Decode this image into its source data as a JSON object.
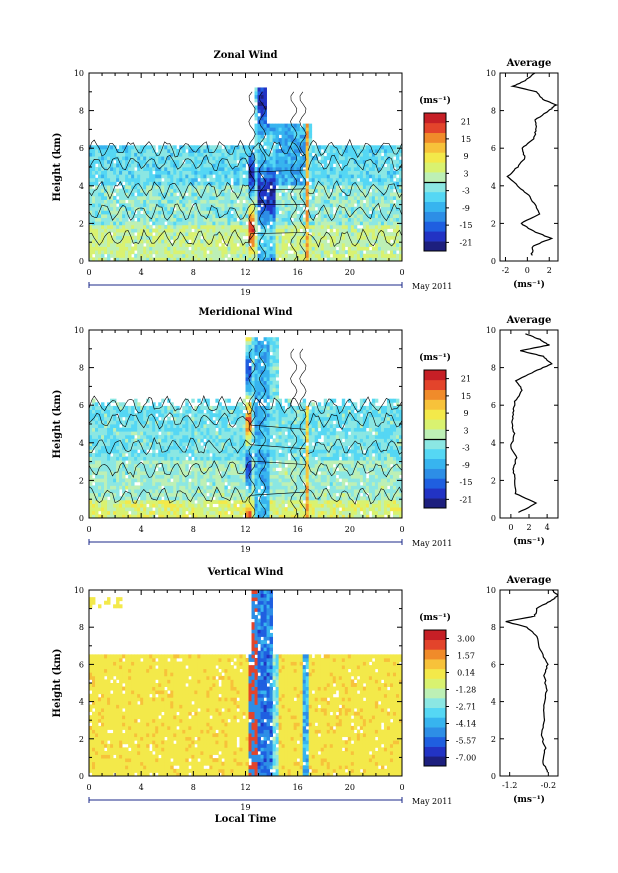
{
  "colors": {
    "colorbar": [
      "#1d1f7e",
      "#2233c4",
      "#1f5fe0",
      "#2d8ee6",
      "#37b4ef",
      "#55d7f4",
      "#8be7e3",
      "#bdf0b5",
      "#d9f270",
      "#f3e94a",
      "#f7c23a",
      "#f08b2a",
      "#e3442b",
      "#c61f26"
    ],
    "contour": "#000000",
    "background": "#ffffff"
  },
  "shared": {
    "xlabel": "Local Time",
    "date_label": "May 2011",
    "day_label": "19",
    "avg_title": "Average",
    "avg_unit": "(ms⁻¹)",
    "cb_unit": "(ms⁻¹)",
    "ylabel": "Height (km)"
  },
  "chart_data": [
    {
      "type": "heatmap",
      "title": "Zonal Wind",
      "ylabel": "Height (km)",
      "xticks": [
        "0",
        "4",
        "8",
        "12",
        "16",
        "20",
        "0"
      ],
      "yticks": [
        "0",
        "2",
        "4",
        "6",
        "8",
        "10"
      ],
      "ylim": [
        0,
        10
      ],
      "colorbar_ticks": [
        "21",
        "15",
        "9",
        "3",
        "-3",
        "-9",
        "-15",
        "-21"
      ],
      "colorbar_range": [
        -24,
        24
      ],
      "contours": true,
      "average": {
        "xticks": [
          "-2",
          "0",
          "2"
        ],
        "xlim": [
          -2.5,
          2.8
        ],
        "height": [
          0.3,
          0.8,
          1.2,
          1.6,
          2.0,
          2.5,
          3.0,
          3.5,
          4.0,
          4.5,
          5.0,
          5.5,
          6.0,
          6.5,
          7.0,
          7.5,
          8.0,
          8.3,
          8.6,
          9.0,
          9.3,
          9.6,
          10.0
        ],
        "value": [
          0.4,
          0.5,
          2.2,
          0.5,
          -0.6,
          1.1,
          0.7,
          0.1,
          -0.9,
          -1.8,
          -0.9,
          -0.2,
          -0.5,
          0.6,
          0.8,
          0.7,
          2.0,
          2.6,
          1.4,
          0.8,
          -1.3,
          -0.2,
          0.7
        ]
      }
    },
    {
      "type": "heatmap",
      "title": "Meridional Wind",
      "ylabel": "Height (km)",
      "xticks": [
        "0",
        "4",
        "8",
        "12",
        "16",
        "20",
        "0"
      ],
      "yticks": [
        "0",
        "2",
        "4",
        "6",
        "8",
        "10"
      ],
      "ylim": [
        0,
        10
      ],
      "colorbar_ticks": [
        "21",
        "15",
        "9",
        "3",
        "-3",
        "-9",
        "-15",
        "-21"
      ],
      "colorbar_range": [
        -24,
        24
      ],
      "contours": true,
      "average": {
        "xticks": [
          "0",
          "2",
          "4"
        ],
        "xlim": [
          -1.2,
          5.2
        ],
        "height": [
          0.3,
          0.8,
          1.3,
          2.0,
          2.6,
          3.2,
          3.8,
          4.4,
          5.0,
          5.6,
          6.2,
          6.8,
          7.3,
          7.8,
          8.2,
          8.6,
          8.9,
          9.2,
          9.5,
          9.8
        ],
        "value": [
          0.9,
          2.8,
          0.5,
          0.4,
          0.3,
          0.6,
          0.0,
          0.4,
          0.1,
          0.3,
          0.4,
          1.3,
          0.6,
          2.6,
          4.5,
          3.6,
          1.0,
          4.2,
          3.2,
          1.6
        ]
      }
    },
    {
      "type": "heatmap",
      "title": "Vertical Wind",
      "ylabel": "Height (km)",
      "xlabel": "Local Time",
      "xticks": [
        "0",
        "4",
        "8",
        "12",
        "16",
        "20",
        "0"
      ],
      "yticks": [
        "0",
        "2",
        "4",
        "6",
        "8",
        "10"
      ],
      "ylim": [
        0,
        10
      ],
      "colorbar_ticks": [
        "3.00",
        "1.57",
        "0.14",
        "-1.28",
        "-2.71",
        "-4.14",
        "-5.57",
        "-7.00"
      ],
      "colorbar_range": [
        -7.7,
        3.7
      ],
      "contours": false,
      "average": {
        "xticks": [
          "-1.2",
          "-0.2"
        ],
        "xlim": [
          -1.45,
          0.05
        ],
        "height": [
          0.2,
          0.8,
          1.5,
          2.2,
          3.0,
          3.8,
          4.6,
          5.4,
          6.0,
          6.8,
          7.5,
          8.0,
          8.3,
          8.6,
          9.0,
          9.4,
          9.7,
          10.0
        ],
        "value": [
          -0.22,
          -0.35,
          -0.28,
          -0.38,
          -0.3,
          -0.33,
          -0.25,
          -0.3,
          -0.22,
          -0.42,
          -0.5,
          -0.75,
          -1.3,
          -0.55,
          -0.5,
          -0.15,
          0.05,
          -0.1
        ]
      }
    }
  ]
}
